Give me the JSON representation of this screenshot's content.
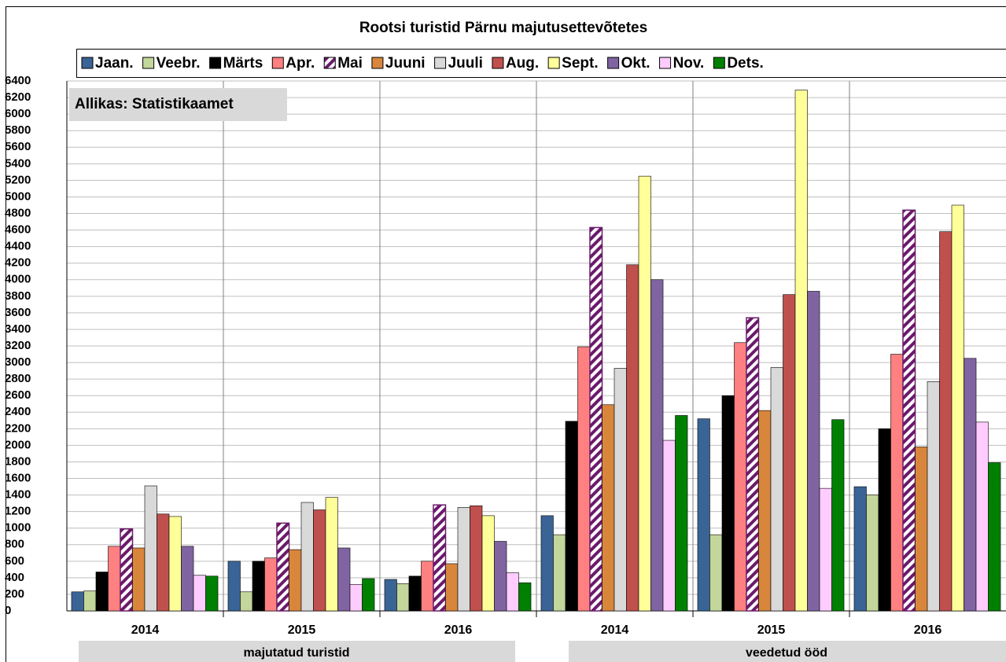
{
  "chart_data": {
    "type": "bar",
    "title": "Rootsi turistid Pärnu majutusettevõtetes",
    "annotation": "Allikas: Statistikaamet",
    "categories": [
      "2014",
      "2015",
      "2016",
      "2014",
      "2015",
      "2016"
    ],
    "groups": [
      "majutatud turistid",
      "veedetud ööd"
    ],
    "ylim": [
      0,
      6400
    ],
    "yticks": [
      0,
      200,
      400,
      600,
      800,
      1000,
      1200,
      1400,
      1600,
      1800,
      2000,
      2200,
      2400,
      2600,
      2800,
      3000,
      3200,
      3400,
      3600,
      3800,
      4000,
      4200,
      4400,
      4600,
      4800,
      5000,
      5200,
      5400,
      5600,
      5800,
      6000,
      6200,
      6400
    ],
    "grid": true,
    "legend": "top",
    "series": [
      {
        "name": "Jaan.",
        "color": "#3a6496",
        "values": [
          230,
          600,
          380,
          1150,
          2320,
          1500
        ]
      },
      {
        "name": "Veebr.",
        "color": "#c3d69b",
        "values": [
          240,
          230,
          330,
          920,
          920,
          1400
        ]
      },
      {
        "name": "Märts",
        "color": "#000000",
        "values": [
          470,
          600,
          420,
          2290,
          2600,
          2200
        ]
      },
      {
        "name": "Apr.",
        "color": "#ff8080",
        "values": [
          780,
          640,
          600,
          3190,
          3240,
          3100
        ]
      },
      {
        "name": "Mai",
        "color": "#6b1a6b",
        "hatch": true,
        "values": [
          990,
          1060,
          1280,
          4630,
          3540,
          4840
        ]
      },
      {
        "name": "Juuni",
        "color": "#d9863d",
        "values": [
          760,
          740,
          570,
          2490,
          2420,
          1980
        ]
      },
      {
        "name": "Juuli",
        "color": "#d9d9d9",
        "values": [
          1510,
          1310,
          1250,
          2930,
          2940,
          2770
        ]
      },
      {
        "name": "Aug.",
        "color": "#c0504d",
        "values": [
          1170,
          1220,
          1270,
          4180,
          3820,
          4580
        ]
      },
      {
        "name": "Sept.",
        "color": "#ffff99",
        "values": [
          1140,
          1370,
          1150,
          5250,
          6290,
          4900
        ]
      },
      {
        "name": "Okt.",
        "color": "#8064a2",
        "values": [
          780,
          760,
          840,
          4000,
          3860,
          3050
        ]
      },
      {
        "name": "Nov.",
        "color": "#ffccff",
        "values": [
          430,
          320,
          460,
          2060,
          1480,
          2280
        ]
      },
      {
        "name": "Dets.",
        "color": "#008000",
        "values": [
          420,
          390,
          340,
          2360,
          2310,
          1790
        ]
      }
    ]
  }
}
